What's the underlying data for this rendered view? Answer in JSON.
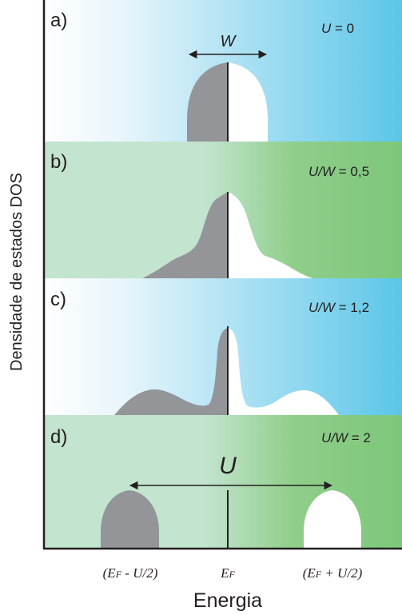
{
  "y_axis_label": "Densidade de estados DOS",
  "x_axis_label": "Energia",
  "x_ticks": [
    {
      "main": "(E",
      "sub": "F",
      "rest": " - U/2)"
    },
    {
      "main": "E",
      "sub": "F",
      "rest": ""
    },
    {
      "main": "(E",
      "sub": "F",
      "rest": " + U/2)"
    }
  ],
  "panels": [
    {
      "letter": "a)",
      "ratio_label": "U",
      "ratio_value": " = 0",
      "arrow_label": "W",
      "background": "blue"
    },
    {
      "letter": "b)",
      "ratio_label": "U/W",
      "ratio_value": " = 0,5",
      "background": "green"
    },
    {
      "letter": "c)",
      "ratio_label": "U/W",
      "ratio_value": " = 1,2",
      "background": "blue"
    },
    {
      "letter": "d)",
      "ratio_label": "U/W",
      "ratio_value": " = 2",
      "arrow_label": "U",
      "background": "green"
    }
  ],
  "colors": {
    "occupied_fill": "#939598",
    "empty_fill": "#ffffff",
    "blue_start": "#ffffff",
    "blue_end": "#5bc6e8",
    "green_start": "#c3e4cf",
    "green_end": "#7dc77a",
    "frame": "#231f20"
  }
}
